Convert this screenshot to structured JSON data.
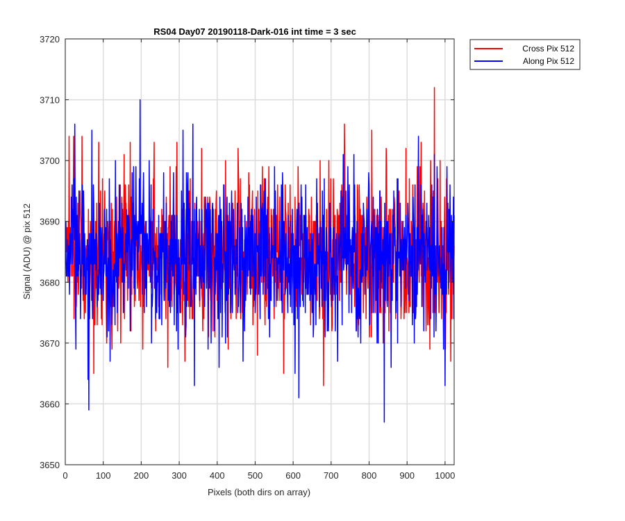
{
  "chart_data": {
    "type": "line",
    "title": "RS04 Day07 20190118-Dark-016 int time = 3 sec",
    "xlabel": "Pixels (both dirs on array)",
    "ylabel": "Signal (ADU) @ pix 512",
    "xlim": [
      0,
      1024
    ],
    "ylim": [
      3650,
      3720
    ],
    "x_ticks": [
      "0",
      "100",
      "200",
      "300",
      "400",
      "500",
      "600",
      "700",
      "800",
      "900",
      "1000"
    ],
    "y_ticks": [
      "3650",
      "3660",
      "3670",
      "3680",
      "3690",
      "3700",
      "3710",
      "3720"
    ],
    "grid": true,
    "legend_position": "outside-top-right",
    "x": "pixel index 1 to 1024 (one sample per pixel)",
    "series": [
      {
        "name": "Cross Pix 512",
        "color": "#ff0000",
        "noise_model": {
          "mean": 3684.5,
          "std": 6.5,
          "min": 3663,
          "max": 3712
        },
        "highlights": [
          {
            "x": 10,
            "y": 3704
          },
          {
            "x": 22,
            "y": 3704
          },
          {
            "x": 44,
            "y": 3704
          },
          {
            "x": 53,
            "y": 3675
          },
          {
            "x": 75,
            "y": 3665
          },
          {
            "x": 88,
            "y": 3703
          },
          {
            "x": 155,
            "y": 3701
          },
          {
            "x": 270,
            "y": 3666
          },
          {
            "x": 455,
            "y": 3702
          },
          {
            "x": 575,
            "y": 3665
          },
          {
            "x": 680,
            "y": 3663
          },
          {
            "x": 735,
            "y": 3706
          },
          {
            "x": 960,
            "y": 3669
          },
          {
            "x": 972,
            "y": 3712
          },
          {
            "x": 1015,
            "y": 3667
          }
        ]
      },
      {
        "name": "Along Pix 512",
        "color": "#0000ff",
        "noise_model": {
          "mean": 3684.5,
          "std": 6.5,
          "min": 3657,
          "max": 3710
        },
        "highlights": [
          {
            "x": 25,
            "y": 3706
          },
          {
            "x": 28,
            "y": 3669
          },
          {
            "x": 60,
            "y": 3664
          },
          {
            "x": 62,
            "y": 3659
          },
          {
            "x": 70,
            "y": 3705
          },
          {
            "x": 197,
            "y": 3710
          },
          {
            "x": 310,
            "y": 3705
          },
          {
            "x": 340,
            "y": 3663
          },
          {
            "x": 615,
            "y": 3661
          },
          {
            "x": 690,
            "y": 3672
          },
          {
            "x": 760,
            "y": 3701
          },
          {
            "x": 840,
            "y": 3657
          },
          {
            "x": 930,
            "y": 3704
          },
          {
            "x": 1000,
            "y": 3663
          }
        ]
      }
    ]
  }
}
